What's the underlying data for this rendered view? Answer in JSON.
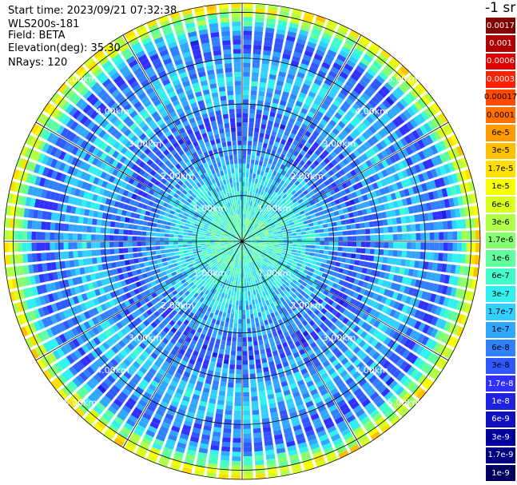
{
  "header": {
    "start_time": "Start time: 2023/09/21 07:32:38",
    "instrument": "WLS200s-181",
    "field": "Field: BETA",
    "elevation": "Elevation(deg): 35.30",
    "nrays": "NRays: 120"
  },
  "colorbar": {
    "unit": "-1 sr",
    "labels": [
      "0.0017",
      "0.001",
      "0.0006",
      "0.0003",
      "0.00017",
      "0.0001",
      "6e-5",
      "3e-5",
      "1.7e-5",
      "1e-5",
      "6e-6",
      "3e-6",
      "1.7e-6",
      "1e-6",
      "6e-7",
      "3e-7",
      "1.7e-7",
      "1e-7",
      "6e-8",
      "3e-8",
      "1.7e-8",
      "1e-8",
      "6e-9",
      "3e-9",
      "1.7e-9",
      "1e-9"
    ],
    "colors": [
      "#800000",
      "#b00000",
      "#e00000",
      "#ff2000",
      "#ff4a00",
      "#ff7000",
      "#ff9a00",
      "#ffc000",
      "#ffe000",
      "#f8ff00",
      "#d8ff20",
      "#b0ff48",
      "#88ff70",
      "#60ffa0",
      "#40ffc8",
      "#30f0f0",
      "#30d0ff",
      "#30a8ff",
      "#3080ff",
      "#3058ff",
      "#3030ff",
      "#2020e0",
      "#1010c0",
      "#0000a0",
      "#000080",
      "#000060"
    ],
    "text_colors": [
      "#fff",
      "#fff",
      "#fff",
      "#fff",
      "#000",
      "#000",
      "#000",
      "#000",
      "#000",
      "#000",
      "#000",
      "#000",
      "#000",
      "#000",
      "#000",
      "#000",
      "#000",
      "#000",
      "#000",
      "#000",
      "#fff",
      "#fff",
      "#fff",
      "#fff",
      "#fff",
      "#fff"
    ]
  },
  "chart_data": {
    "type": "heatmap",
    "subtype": "polar-ppi",
    "field": "BETA",
    "nrays": 120,
    "max_range_km": 5.2,
    "range_ring_labels": [
      "1.00km",
      "2.00km",
      "3.00km",
      "4.00km",
      "5.00km"
    ],
    "rings_km": [
      1,
      2,
      3,
      4,
      5
    ],
    "spokes_deg": [
      0,
      30,
      60,
      90,
      120,
      150,
      180,
      210,
      240,
      270,
      300,
      330
    ],
    "radial_profile": [
      {
        "range_km": 0.5,
        "value": "6e-7"
      },
      {
        "range_km": 1.5,
        "value": "1.7e-7"
      },
      {
        "range_km": 2.5,
        "value": "3e-8"
      },
      {
        "range_km": 3.5,
        "value": "1.7e-7"
      },
      {
        "range_km": 4.5,
        "value": "3e-8"
      },
      {
        "range_km": 5.1,
        "value": "1e-5"
      }
    ]
  }
}
